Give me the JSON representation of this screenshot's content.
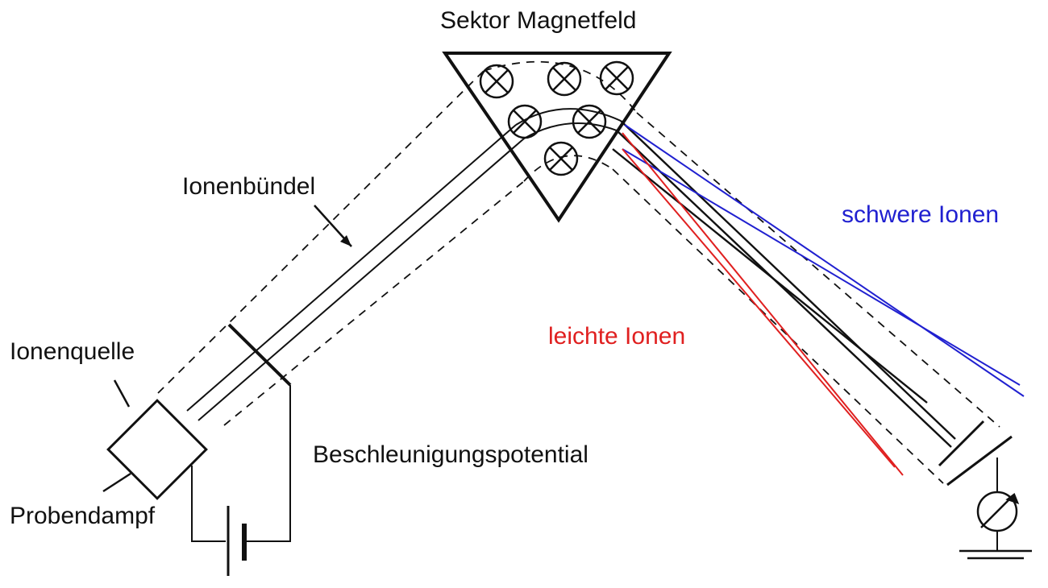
{
  "labels": {
    "sector": "Sektor Magnetfeld",
    "beam": "Ionenbündel",
    "heavy": "schwere Ionen",
    "light": "leichte Ionen",
    "source": "Ionenquelle",
    "acceleration": "Beschleunigungspotential",
    "sample": "Probendampf"
  },
  "colors": {
    "ink": "#111111",
    "heavy_ions": "#2020d0",
    "light_ions": "#e02020",
    "background": "#ffffff"
  },
  "icons": {
    "field": "circled-x-field-symbol",
    "meter": "ammeter-symbol",
    "battery": "battery-symbol",
    "ground": "ground-symbol"
  }
}
